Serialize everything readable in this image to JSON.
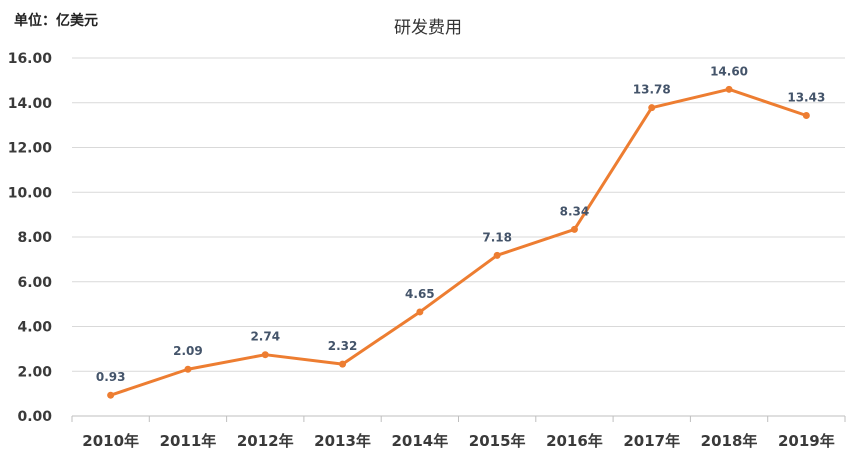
{
  "chart_data": {
    "type": "line",
    "unit_label": "单位：亿美元",
    "title": "研发费用",
    "categories": [
      "2010年",
      "2011年",
      "2012年",
      "2013年",
      "2014年",
      "2015年",
      "2016年",
      "2017年",
      "2018年",
      "2019年"
    ],
    "series": [
      {
        "values": [
          0.93,
          2.09,
          2.74,
          2.32,
          4.65,
          7.18,
          8.34,
          13.78,
          14.6,
          13.43
        ],
        "labels": [
          "0.93",
          "2.09",
          "2.74",
          "2.32",
          "4.65",
          "7.18",
          "8.34",
          "13.78",
          "14.60",
          "13.43"
        ],
        "color": "#ed7d31"
      }
    ],
    "ylim": [
      0,
      16
    ],
    "yticks": [
      "0.00",
      "2.00",
      "4.00",
      "6.00",
      "8.00",
      "10.00",
      "12.00",
      "14.00",
      "16.00"
    ],
    "grid": true
  }
}
